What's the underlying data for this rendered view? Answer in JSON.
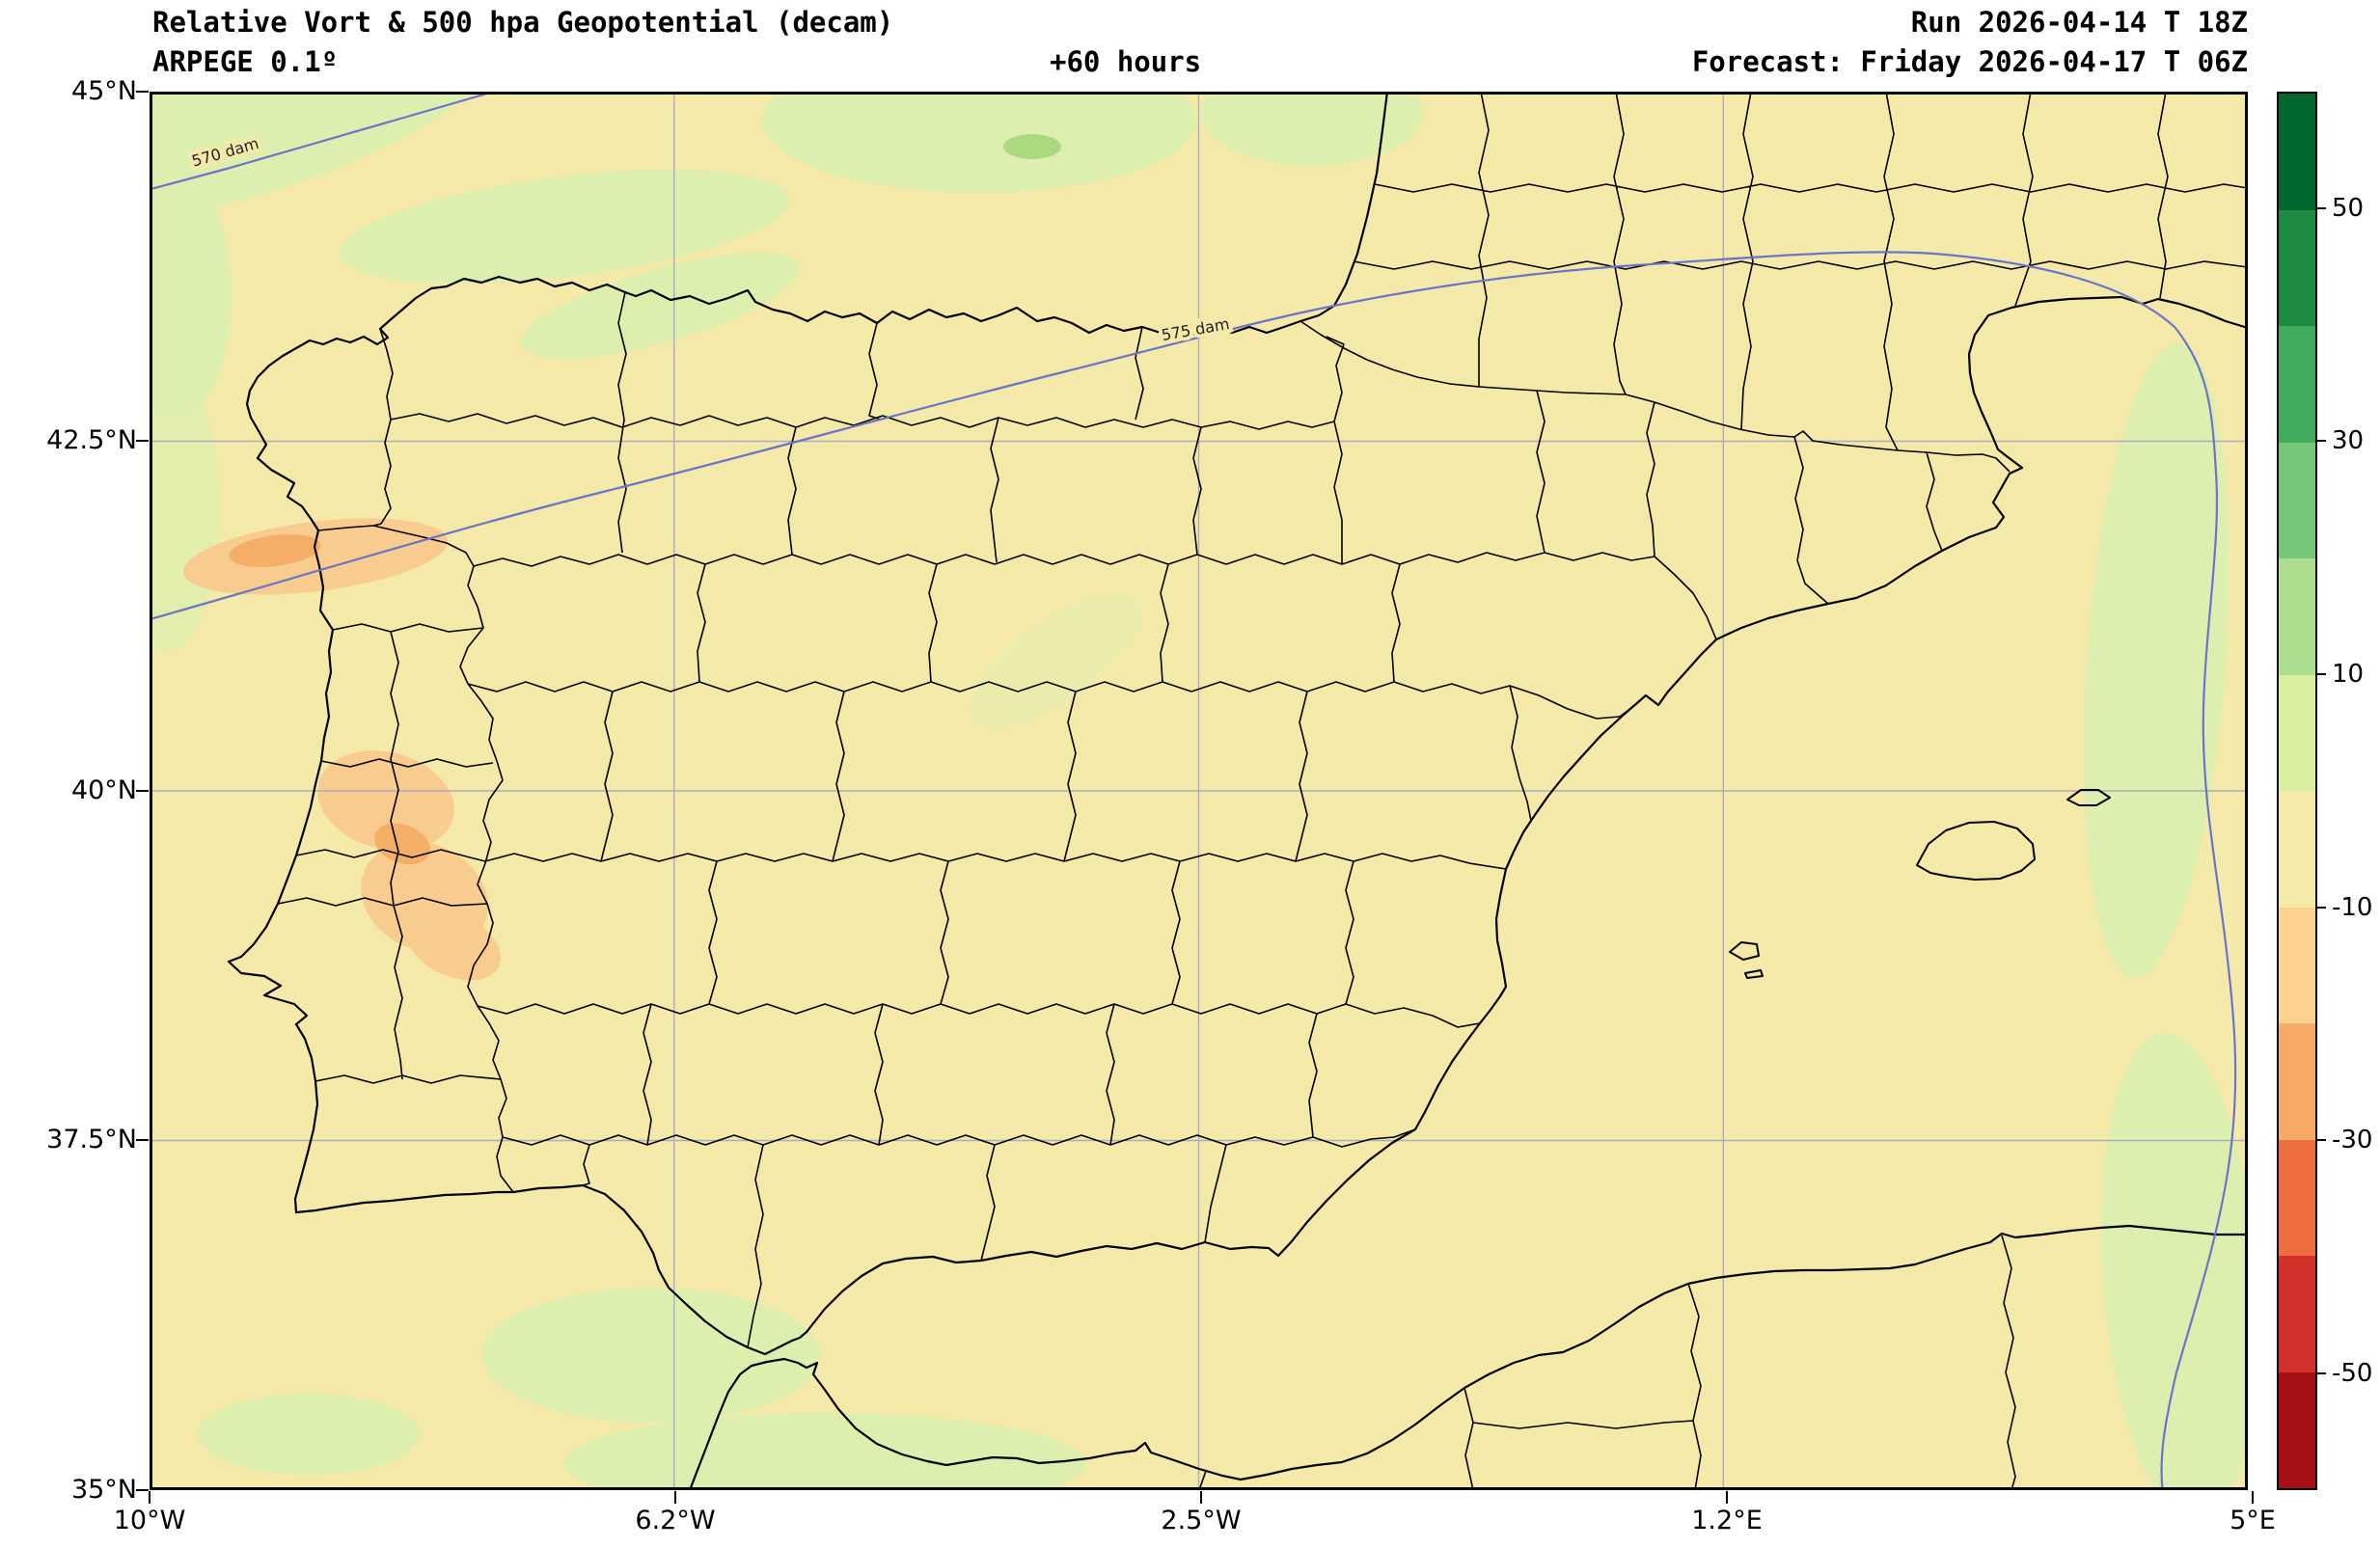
{
  "header": {
    "title": "Relative Vort & 500 hpa Geopotential (decam)",
    "model": "ARPEGE 0.1º",
    "lead_time": "+60 hours",
    "run": "Run 2026-04-14 T 18Z",
    "forecast": "Forecast: Friday 2026-04-17 T 06Z"
  },
  "axes": {
    "lat_ticks": [
      "45°N",
      "42.5°N",
      "40°N",
      "37.5°N",
      "35°N"
    ],
    "lon_ticks": [
      "10°W",
      "6.2°W",
      "2.5°W",
      "1.2°E",
      "5°E"
    ]
  },
  "contours": {
    "c570": "570 dam",
    "c575": "575 dam"
  },
  "colorbar": {
    "ticks": [
      "50",
      "30",
      "10",
      "-10",
      "-30",
      "-50"
    ],
    "segments": [
      "#00682d",
      "#1e8b45",
      "#41ab5d",
      "#78c679",
      "#addd8e",
      "#d9ef9e",
      "#f5e9a9",
      "#fbd28f",
      "#f8ab66",
      "#ee6d41",
      "#d2302a",
      "#a50f15"
    ]
  },
  "colors": {
    "map-bg": "#f5e9a9",
    "green1": "#ddefae",
    "green2": "#aada7d",
    "orange1": "#f8cb8e",
    "orange2": "#f4ae68",
    "contour": "#6a74c8",
    "grid": "#a9aebe"
  }
}
